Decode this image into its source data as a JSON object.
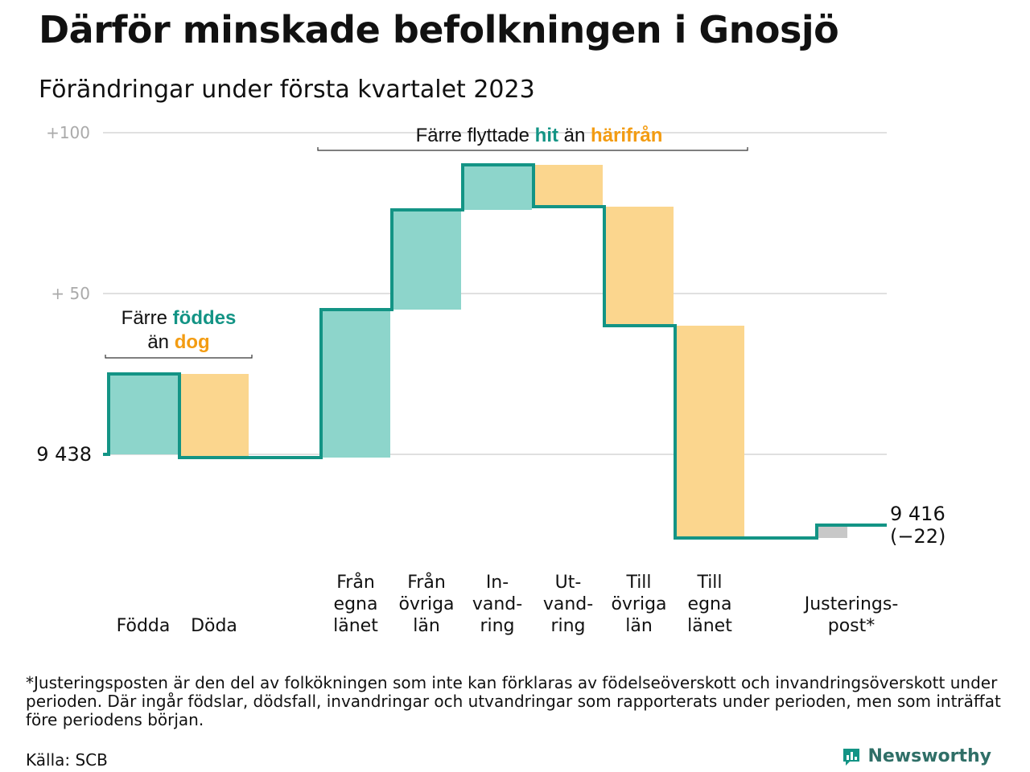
{
  "title": "Därför minskade befolkningen i Gnosjö",
  "subtitle": "Förändringar under första kvartalet 2023",
  "footnote": "*Justeringsposten är den del av folkökningen som inte kan förklaras av födelseöverskott och invandringsöverskott under perioden. Där ingår födslar, dödsfall, invandringar och utvandringar som rapporterats under perioden, men som inträffat före periodens början.",
  "source": "Källa: SCB",
  "brand": "Newsworthy",
  "colors": {
    "increase": "#8dd5cb",
    "decrease": "#fbd68e",
    "adjustment": "#c8c8c8",
    "line": "#139485",
    "accent_hit": "#139485",
    "accent_harifran": "#f39c12",
    "grid": "#e0e0e0",
    "tick": "#aaaaaa"
  },
  "chart_data": {
    "type": "bar",
    "subtype": "waterfall",
    "start_value": 9438,
    "end_value": 9416,
    "net_change": -22,
    "start_label": "9 438",
    "end_label": "9 416",
    "end_change_label": "(−22)",
    "ylim": [
      -27,
      100
    ],
    "yticks": [
      {
        "value": 100,
        "label": "+100"
      },
      {
        "value": 50,
        "label": "+ 50"
      }
    ],
    "categories": [
      {
        "key": "fodda",
        "lines": [
          "Födda"
        ],
        "value": 25,
        "kind": "increase"
      },
      {
        "key": "doda",
        "lines": [
          "Döda"
        ],
        "value": -26,
        "kind": "decrease"
      },
      {
        "key": "gap",
        "lines": [],
        "value": 0,
        "kind": "gap"
      },
      {
        "key": "fran_egna",
        "lines": [
          "Från",
          "egna",
          "länet"
        ],
        "value": 46,
        "kind": "increase"
      },
      {
        "key": "fran_ovriga",
        "lines": [
          "Från",
          "övriga",
          "län"
        ],
        "value": 31,
        "kind": "increase"
      },
      {
        "key": "invandring",
        "lines": [
          "In-",
          "vand-",
          "ring"
        ],
        "value": 14,
        "kind": "increase"
      },
      {
        "key": "utvandring",
        "lines": [
          "Ut-",
          "vand-",
          "ring"
        ],
        "value": -13,
        "kind": "decrease"
      },
      {
        "key": "till_ovriga",
        "lines": [
          "Till",
          "övriga",
          "län"
        ],
        "value": -37,
        "kind": "decrease"
      },
      {
        "key": "till_egna",
        "lines": [
          "Till",
          "egna",
          "länet"
        ],
        "value": -66,
        "kind": "decrease"
      },
      {
        "key": "gap2",
        "lines": [],
        "value": 0,
        "kind": "gap"
      },
      {
        "key": "justering",
        "lines": [
          "Justerings-",
          "post*"
        ],
        "value": 4,
        "kind": "adjustment"
      }
    ],
    "annotations": [
      {
        "key": "births",
        "span": [
          0,
          1
        ],
        "line1": [
          {
            "text": "Färre ",
            "style": "plain"
          },
          {
            "text": "föddes",
            "style": "hit"
          }
        ],
        "line2": [
          {
            "text": "än ",
            "style": "plain"
          },
          {
            "text": "dog",
            "style": "harifran"
          }
        ]
      },
      {
        "key": "migration",
        "span": [
          3,
          8
        ],
        "line1": [
          {
            "text": "Färre flyttade ",
            "style": "plain"
          },
          {
            "text": "hit",
            "style": "hit"
          },
          {
            "text": " än ",
            "style": "plain"
          },
          {
            "text": "härifrån",
            "style": "harifran"
          }
        ]
      }
    ]
  }
}
